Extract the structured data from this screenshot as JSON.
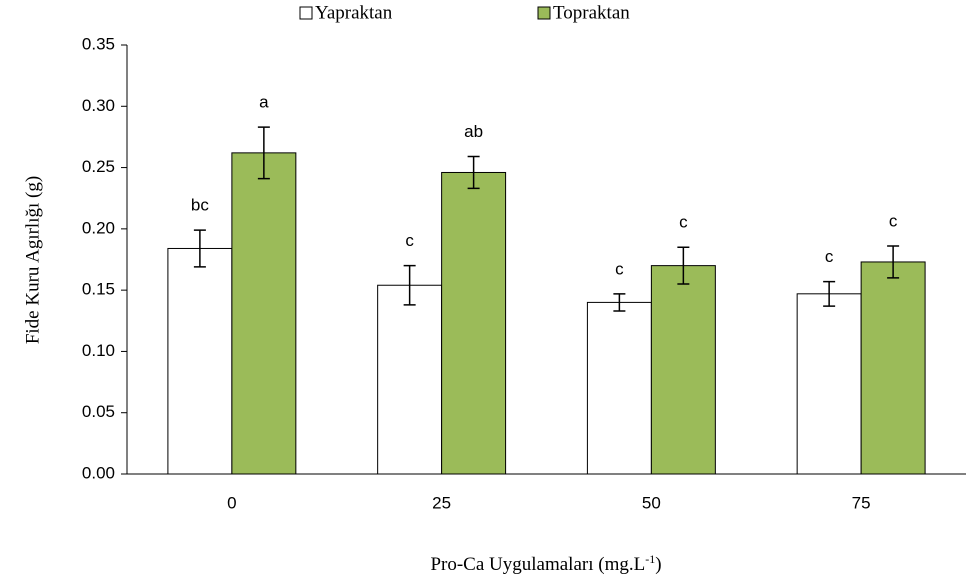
{
  "chart_data": {
    "type": "bar",
    "x_label": [
      "Pro-Ca Uygulamaları (mg.L",
      "-1",
      ")"
    ],
    "y_label": "Fide Kuru Agırlığı (g)",
    "categories": [
      "0",
      "25",
      "50",
      "75"
    ],
    "series": [
      {
        "name": "Yapraktan",
        "color": "#ffffff",
        "values": [
          0.184,
          0.154,
          0.14,
          0.147
        ],
        "errors": [
          0.015,
          0.016,
          0.007,
          0.01
        ],
        "labels": [
          "bc",
          "c",
          "c",
          "c"
        ]
      },
      {
        "name": "Topraktan",
        "color": "#9bbb59",
        "values": [
          0.262,
          0.246,
          0.17,
          0.173
        ],
        "errors": [
          0.021,
          0.013,
          0.015,
          0.013
        ],
        "labels": [
          "a",
          "ab",
          "c",
          "c"
        ]
      }
    ],
    "ylim": [
      0,
      0.35
    ],
    "yticks": [
      {
        "value": 0,
        "label": "0.00"
      },
      {
        "value": 0.05,
        "label": "0.05"
      },
      {
        "value": 0.1,
        "label": "0.10"
      },
      {
        "value": 0.15,
        "label": "0.15"
      },
      {
        "value": 0.2,
        "label": "0.20"
      },
      {
        "value": 0.25,
        "label": "0.25"
      },
      {
        "value": 0.3,
        "label": "0.30"
      },
      {
        "value": 0.35,
        "label": "0.35"
      }
    ],
    "grid": false,
    "legend": "top"
  }
}
